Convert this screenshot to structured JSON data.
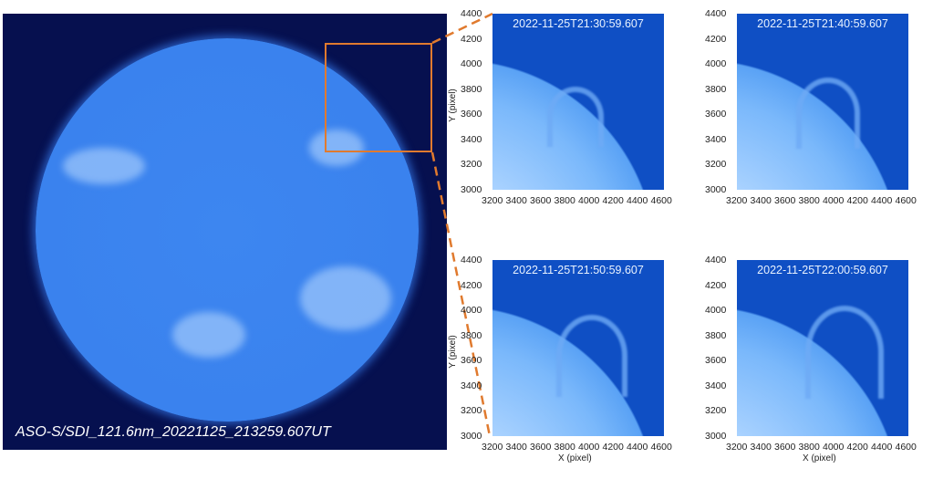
{
  "full_disk": {
    "label": "ASO-S/SDI_121.6nm_20221125_213259.607UT"
  },
  "highlight_color": "#e07a2e",
  "panels": [
    {
      "title": "2022-11-25T21:30:59.607"
    },
    {
      "title": "2022-11-25T21:40:59.607"
    },
    {
      "title": "2022-11-25T21:50:59.607"
    },
    {
      "title": "2022-11-25T22:00:59.607"
    }
  ],
  "axes": {
    "xlabel": "X (pixel)",
    "ylabel": "Y (pixel)",
    "xticks": [
      "3200",
      "3400",
      "3600",
      "3800",
      "4000",
      "4200",
      "4400",
      "4600"
    ],
    "yticks": [
      "4400",
      "4200",
      "4000",
      "3800",
      "3600",
      "3400",
      "3200",
      "3000"
    ]
  }
}
